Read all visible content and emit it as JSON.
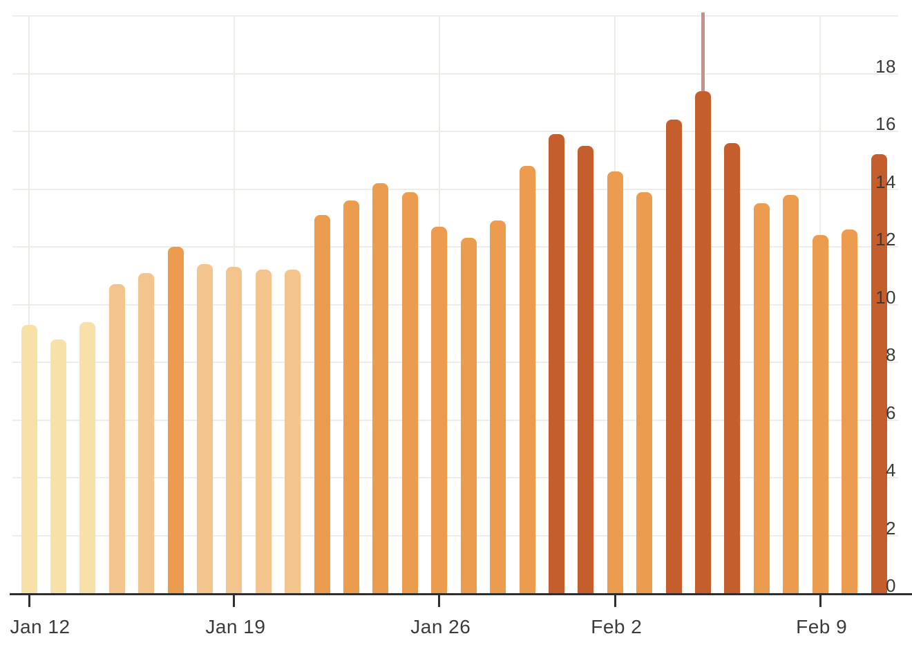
{
  "chart_data": {
    "type": "bar",
    "title": "",
    "xlabel": "",
    "ylabel": "",
    "values": [
      9.3,
      8.8,
      9.4,
      10.7,
      11.1,
      12.0,
      11.4,
      11.3,
      11.2,
      11.2,
      13.1,
      13.6,
      14.2,
      13.9,
      12.7,
      12.3,
      12.9,
      14.8,
      15.9,
      15.5,
      14.6,
      13.9,
      16.4,
      17.4,
      15.6,
      13.5,
      13.8,
      12.4,
      12.6,
      15.2
    ],
    "x_tick_labels": [
      {
        "label": "Jan 12",
        "bar_index": 0
      },
      {
        "label": "Jan 19",
        "bar_index": 7
      },
      {
        "label": "Jan 26",
        "bar_index": 14
      },
      {
        "label": "Feb 2",
        "bar_index": 20
      },
      {
        "label": "Feb 9",
        "bar_index": 27
      }
    ],
    "y_tick_labels": [
      "0",
      "2",
      "4",
      "6",
      "8",
      "10",
      "12",
      "14",
      "16",
      "18"
    ],
    "y_ticks": [
      0,
      2,
      4,
      6,
      8,
      10,
      12,
      14,
      16,
      18
    ],
    "ylim": [
      0,
      20
    ],
    "grid": true,
    "legend_position": "none",
    "y_axis_side": "right",
    "bar_color_rule": [
      {
        "max_exclusive": 10,
        "color_key": "cream"
      },
      {
        "max_exclusive": 12,
        "color_key": "peach"
      },
      {
        "max_exclusive": 15,
        "color_key": "orange"
      },
      {
        "max_exclusive": 99,
        "color_key": "dark"
      }
    ],
    "annotations": [
      {
        "type": "vline",
        "name": "marker-line",
        "bar_index": 23,
        "color": "#C9908B"
      }
    ]
  },
  "colors": {
    "cream": "#F8E0A9",
    "peach": "#F3C48E",
    "orange": "#EC9C4E",
    "dark": "#C45E2C",
    "marker": "#C9908B",
    "grid": "#EFECE8",
    "axis": "#2E2E2E",
    "label": "#3B3B3B",
    "background": "#FFFFFF"
  }
}
